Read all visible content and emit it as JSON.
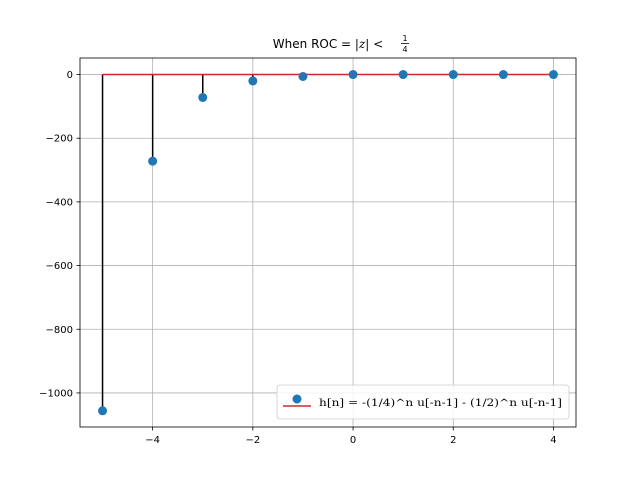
{
  "chart_data": {
    "type": "stem",
    "title": "When ROC = |z| < 1/4",
    "title_parts": {
      "prefix": "When ROC = ",
      "math": "|z| < ",
      "num": "1",
      "den": "4"
    },
    "xlabel": "",
    "ylabel": "",
    "xlim": [
      -5.45,
      4.45
    ],
    "ylim": [
      -1107,
      52
    ],
    "xticks": [
      -4,
      -2,
      0,
      2,
      4
    ],
    "yticks": [
      0,
      -200,
      -400,
      -600,
      -800,
      -1000
    ],
    "grid": true,
    "legend_position": "bottom-right",
    "legend_label": "h[n] = -(1/4)^n u[-n-1] - (1/2)^n u[-n-1]",
    "x": [
      -5,
      -4,
      -3,
      -2,
      -1,
      0,
      1,
      2,
      3,
      4
    ],
    "values": [
      -1056,
      -272,
      -72,
      -20,
      -6,
      0,
      0,
      0,
      0,
      0
    ],
    "colors": {
      "marker": "#1f77b4",
      "stem": "#000000",
      "baseline": "#d62728",
      "grid": "#b0b0b0"
    }
  }
}
